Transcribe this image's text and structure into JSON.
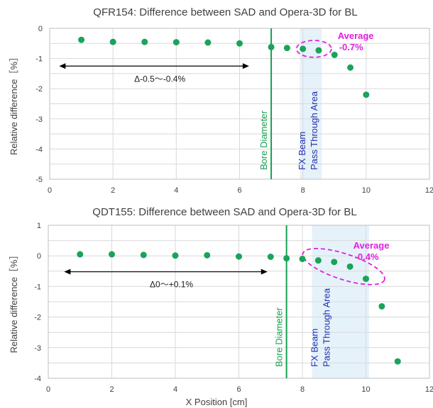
{
  "chart_data": [
    {
      "type": "scatter",
      "title": "QFR154: Difference between SAD and Opera-3D for BL",
      "ylabel": "Relative difference［%］",
      "xlabel": "",
      "xlim": [
        0,
        12
      ],
      "ylim": [
        -5,
        0
      ],
      "xticks": [
        0,
        2,
        4,
        6,
        8,
        10,
        12
      ],
      "yticks": [
        0,
        -1,
        -2,
        -3,
        -4,
        -5
      ],
      "grid": true,
      "points": [
        {
          "x": 1,
          "y": -0.38
        },
        {
          "x": 2,
          "y": -0.45
        },
        {
          "x": 3,
          "y": -0.45
        },
        {
          "x": 4,
          "y": -0.46
        },
        {
          "x": 5,
          "y": -0.47
        },
        {
          "x": 6,
          "y": -0.5
        },
        {
          "x": 7,
          "y": -0.62
        },
        {
          "x": 7.5,
          "y": -0.65
        },
        {
          "x": 8,
          "y": -0.68
        },
        {
          "x": 8.5,
          "y": -0.73
        },
        {
          "x": 9,
          "y": -0.88
        },
        {
          "x": 9.5,
          "y": -1.3
        },
        {
          "x": 10,
          "y": -2.2
        }
      ],
      "bore_x": 7,
      "pass_through_x": [
        7.9,
        8.6
      ],
      "annotations": {
        "bore": "Bore Diameter",
        "beam_line1": "FX Beam",
        "beam_line2": "Pass Through Area",
        "average_line1": "Average",
        "average_line2": "-0.7%",
        "range": "Δ-0.5～-0.4%"
      },
      "range_arrow_x": [
        0.3,
        6.3
      ],
      "range_arrow_y": -1.25,
      "ellipse": {
        "cx": 8.35,
        "cy": -0.68,
        "rx": 0.55,
        "ry": 0.28
      }
    },
    {
      "type": "scatter",
      "title": "QDT155: Difference between SAD and Opera-3D for BL",
      "ylabel": "Relative difference［%］",
      "xlabel": "X Position [cm]",
      "xlim": [
        0,
        12
      ],
      "ylim": [
        -4,
        1
      ],
      "xticks": [
        0,
        2,
        4,
        6,
        8,
        10,
        12
      ],
      "yticks": [
        1,
        0,
        -1,
        -2,
        -3,
        -4
      ],
      "grid": true,
      "points": [
        {
          "x": 1,
          "y": 0.05
        },
        {
          "x": 2,
          "y": 0.05
        },
        {
          "x": 3,
          "y": 0.03
        },
        {
          "x": 4,
          "y": 0.01
        },
        {
          "x": 5,
          "y": 0.02
        },
        {
          "x": 6,
          "y": -0.02
        },
        {
          "x": 7,
          "y": -0.03
        },
        {
          "x": 7.5,
          "y": -0.08
        },
        {
          "x": 8,
          "y": -0.1
        },
        {
          "x": 8.5,
          "y": -0.15
        },
        {
          "x": 9,
          "y": -0.2
        },
        {
          "x": 9.5,
          "y": -0.35
        },
        {
          "x": 10,
          "y": -0.75
        },
        {
          "x": 10.5,
          "y": -1.65
        },
        {
          "x": 11,
          "y": -3.45
        }
      ],
      "bore_x": 7.5,
      "pass_through_x": [
        8.3,
        10.1
      ],
      "annotations": {
        "bore": "Bore Diameter",
        "beam_line1": "FX Beam",
        "beam_line2": "Pass Through Area",
        "average_line1": "Average",
        "average_line2": "-0.4%",
        "range": "Δ0～+0.1%"
      },
      "range_arrow_x": [
        0.5,
        6.9
      ],
      "range_arrow_y": -0.52,
      "ellipse": {
        "cx": 9.3,
        "cy": -0.35,
        "rx": 1.35,
        "ry": 0.42,
        "rotate": 18
      }
    }
  ]
}
